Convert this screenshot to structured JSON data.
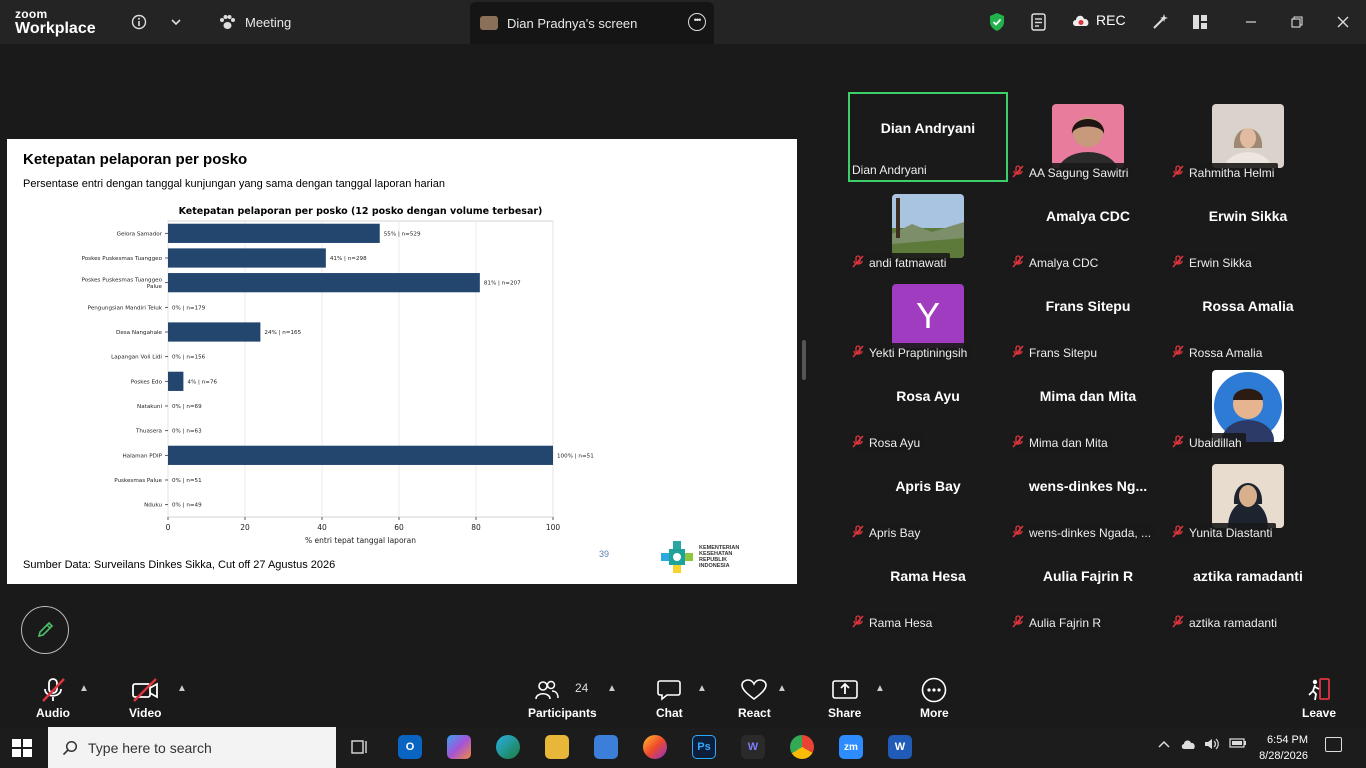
{
  "app": {
    "brand_line1": "zoom",
    "brand_line2": "Workplace",
    "meeting_tab": "Meeting",
    "screen_tab": "Dian Pradnya's screen",
    "rec_label": "REC"
  },
  "slide": {
    "title": "Ketepatan pelaporan per posko",
    "subtitle": "Persentase entri dengan tanggal kunjungan yang sama dengan tanggal laporan harian",
    "source": "Sumber Data: Surveilans Dinkes Sikka, Cut off 27 Agustus 2026",
    "page_number": "39",
    "logo_text": [
      "KEMENTERIAN",
      "KESEHATAN",
      "REPUBLIK",
      "INDONESIA"
    ]
  },
  "chart_data": {
    "type": "bar",
    "orientation": "horizontal",
    "title": "Ketepatan pelaporan per posko (12 posko dengan volume terbesar)",
    "xlabel": "% entri tepat tanggal laporan",
    "ylabel": "",
    "xlim": [
      0,
      100
    ],
    "xticks": [
      0,
      20,
      40,
      60,
      80,
      100
    ],
    "grid": "vertical",
    "bar_color": "#23466f",
    "categories": [
      "Gelora Samador",
      "Poskes Puskesmas Tuanggeo",
      "Poskes Puskesmas Tuanggeo Palue",
      "Pengungsian Mandiri Teluk",
      "Desa Nangahale",
      "Lapangan Voli Lidi",
      "Poskes Edo",
      "Natakuni",
      "Thuasera",
      "Halaman PDIP",
      "Puskesmas Palue",
      "Nduku"
    ],
    "values": [
      55,
      41,
      81,
      0,
      24,
      0,
      4,
      0,
      0,
      100,
      0,
      0
    ],
    "data_labels": [
      "55% | n=529",
      "41% | n=298",
      "81% | n=207",
      "0% | n=179",
      "24% | n=165",
      "0% | n=156",
      "4% | n=76",
      "0% | n=69",
      "0% | n=63",
      "100% | n=51",
      "0% | n=51",
      "0% | n=49"
    ]
  },
  "participants": [
    {
      "name": "Dian Andryani",
      "display": "Dian Andryani",
      "active": true,
      "muted": false,
      "video": "none"
    },
    {
      "name": "AA Sagung Sawitri",
      "display": "",
      "muted": true,
      "video": "photo-woman"
    },
    {
      "name": "Rahmitha Helmi",
      "display": "",
      "muted": true,
      "video": "photo-hijab"
    },
    {
      "name": "andi fatmawati",
      "display": "",
      "muted": true,
      "video": "photo-landscape"
    },
    {
      "name": "Amalya CDC",
      "display": "Amalya CDC",
      "muted": true,
      "video": "none"
    },
    {
      "name": "Erwin Sikka",
      "display": "Erwin Sikka",
      "muted": true,
      "video": "none"
    },
    {
      "name": "Yekti Praptiningsih",
      "display": "",
      "muted": true,
      "video": "avatar-letter",
      "avatar_letter": "Y",
      "avatar_color": "#a03cc0"
    },
    {
      "name": "Frans Sitepu",
      "display": "Frans Sitepu",
      "muted": true,
      "video": "none"
    },
    {
      "name": "Rossa Amalia",
      "display": "Rossa Amalia",
      "muted": true,
      "video": "none"
    },
    {
      "name": "Rosa Ayu",
      "display": "Rosa Ayu",
      "muted": true,
      "video": "none"
    },
    {
      "name": "Mima dan Mita",
      "display": "Mima dan Mita",
      "muted": true,
      "video": "none"
    },
    {
      "name": "Ubaidillah",
      "display": "",
      "muted": true,
      "video": "photo-cartoon"
    },
    {
      "name": "Apris Bay",
      "display": "Apris Bay",
      "muted": true,
      "video": "none"
    },
    {
      "name": "wens-dinkes Ngada, ...",
      "display": "wens-dinkes  Ng...",
      "muted": true,
      "video": "none"
    },
    {
      "name": "Yunita Diastanti",
      "display": "",
      "muted": true,
      "video": "photo-hijab-dark"
    },
    {
      "name": "Rama Hesa",
      "display": "Rama Hesa",
      "muted": true,
      "video": "none"
    },
    {
      "name": "Aulia Fajrin R",
      "display": "Aulia Fajrin R",
      "muted": true,
      "video": "none"
    },
    {
      "name": "aztika ramadanti",
      "display": "aztika ramadanti",
      "muted": true,
      "video": "none"
    }
  ],
  "toolbar": {
    "audio": "Audio",
    "video": "Video",
    "participants": "Participants",
    "participants_count": "24",
    "chat": "Chat",
    "react": "React",
    "share": "Share",
    "more": "More",
    "leave": "Leave"
  },
  "taskbar": {
    "search_placeholder": "Type here to search",
    "time": "6:54 PM",
    "date": "8/28/2026"
  }
}
